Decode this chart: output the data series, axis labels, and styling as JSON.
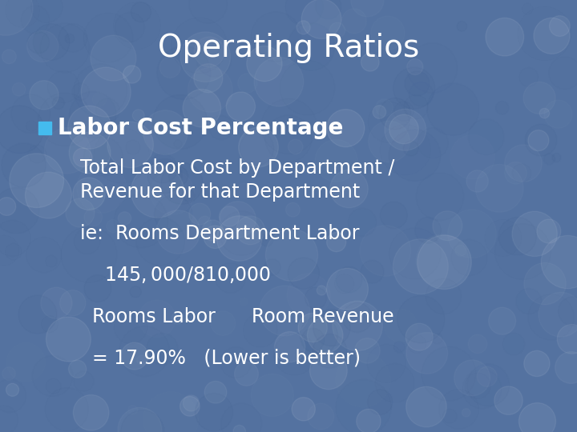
{
  "title": "Operating Ratios",
  "title_color": "#FFFFFF",
  "title_fontsize": 28,
  "background_color": "#5472a0",
  "bullet_color": "#44BBEE",
  "bullet_label": "Labor Cost Percentage",
  "bullet_label_fontsize": 20,
  "sub_line1": "Total Labor Cost by Department /",
  "sub_line2": "Revenue for that Department",
  "sub_fontsize": 17,
  "detail_line1": "ie:  Rooms Department Labor",
  "detail_line2": "    $ 145,000      /    $810,000",
  "detail_line3": "  Rooms Labor      Room Revenue",
  "detail_line4": "  = 17.90%   (Lower is better)",
  "detail_fontsize": 17,
  "text_color": "#FFFFFF",
  "font_family": "DejaVu Sans"
}
